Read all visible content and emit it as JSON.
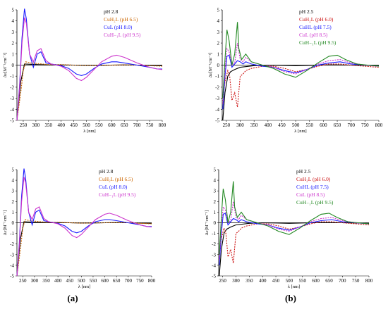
{
  "chart_data": [
    {
      "type": "line",
      "panel": "a-top",
      "xlabel": "λ [nm]",
      "ylabel": "Δε[M⁻¹cm⁻¹]",
      "xlim": [
        225,
        800
      ],
      "ylim": [
        -5,
        5
      ],
      "xticks": [
        250,
        300,
        350,
        400,
        450,
        500,
        550,
        600,
        650,
        700,
        750,
        800
      ],
      "yticks": [
        -5,
        -4,
        -3,
        -2,
        -1,
        0,
        1,
        2,
        3,
        4,
        5
      ],
      "legend_position": "top-right",
      "series": [
        {
          "name": "pH 2.8",
          "color": "#000000",
          "dash": "",
          "x": [
            225,
            240,
            255,
            270,
            300,
            350,
            400,
            450,
            500,
            550,
            600,
            650,
            700,
            750,
            800
          ],
          "y": [
            -5,
            -1.5,
            0.1,
            0.08,
            0.05,
            0.02,
            0.01,
            0.0,
            -0.03,
            -0.02,
            0.0,
            0.02,
            0.0,
            -0.03,
            -0.05
          ]
        },
        {
          "name": "CuH2L (pH 6.5)",
          "color": "#cc6600",
          "dash": "2,1.5",
          "x": [
            225,
            240,
            250,
            260,
            280,
            300,
            350,
            400,
            450,
            500,
            550,
            600,
            650,
            700,
            750,
            800
          ],
          "y": [
            -5,
            -2.5,
            -0.5,
            0.3,
            0.2,
            0.15,
            0.05,
            0.05,
            0.0,
            -0.03,
            -0.02,
            0.0,
            0.02,
            0.0,
            -0.05,
            -0.1
          ]
        },
        {
          "name": "CuL (pH 8.0)",
          "color": "#1a1aff",
          "dash": "",
          "x": [
            225,
            235,
            245,
            255,
            262,
            275,
            290,
            305,
            320,
            340,
            360,
            400,
            430,
            460,
            480,
            500,
            530,
            560,
            600,
            620,
            650,
            700,
            750,
            780,
            800
          ],
          "y": [
            -5,
            -2,
            2.5,
            5.1,
            4.2,
            1.0,
            -0.2,
            1.0,
            1.2,
            0.2,
            0.1,
            -0.05,
            -0.3,
            -0.8,
            -0.95,
            -0.8,
            -0.3,
            0.1,
            0.3,
            0.3,
            0.2,
            0.0,
            -0.2,
            -0.35,
            -0.35
          ]
        },
        {
          "name": "CuH-1L (pH 9.5)",
          "color": "#cc33cc",
          "dash": "",
          "x": [
            225,
            235,
            245,
            255,
            262,
            275,
            290,
            305,
            320,
            340,
            360,
            400,
            430,
            460,
            480,
            500,
            530,
            560,
            600,
            620,
            650,
            700,
            750,
            780,
            800
          ],
          "y": [
            -5,
            -2.2,
            2.0,
            4.3,
            3.8,
            1.0,
            0.3,
            1.3,
            1.5,
            0.4,
            0.1,
            -0.1,
            -0.5,
            -1.2,
            -1.4,
            -1.1,
            -0.4,
            0.3,
            0.8,
            0.9,
            0.7,
            0.2,
            -0.2,
            -0.35,
            -0.4
          ]
        }
      ]
    },
    {
      "type": "line",
      "panel": "b-top",
      "xlabel": "λ [nm]",
      "ylabel": "Δε[M⁻¹cm⁻¹]",
      "xlim": [
        235,
        800
      ],
      "ylim": [
        -5,
        5
      ],
      "xticks": [
        250,
        300,
        350,
        400,
        450,
        500,
        550,
        600,
        650,
        700,
        750,
        800
      ],
      "yticks": [
        -5,
        -4,
        -3,
        -2,
        -1,
        0,
        1,
        2,
        3,
        4,
        5
      ],
      "legend_position": "top-right",
      "series": [
        {
          "name": "pH 2.5",
          "color": "#000000",
          "dash": "",
          "x": [
            237,
            245,
            255,
            265,
            280,
            300,
            350,
            400,
            450,
            500,
            550,
            600,
            650,
            700,
            750,
            800
          ],
          "y": [
            -5,
            -2.5,
            -1.0,
            -0.6,
            -0.4,
            -0.2,
            -0.05,
            0.0,
            -0.02,
            -0.05,
            -0.02,
            0.02,
            0.02,
            0.0,
            -0.02,
            -0.05
          ]
        },
        {
          "name": "CuH2L (pH 6.0)",
          "color": "#cc1111",
          "dash": "2,1.5",
          "x": [
            237,
            245,
            255,
            262,
            270,
            280,
            290,
            300,
            310,
            320,
            340,
            380,
            420,
            460,
            500,
            540,
            580,
            620,
            660,
            700,
            750,
            800
          ],
          "y": [
            -3,
            -1.5,
            -0.5,
            -1.0,
            -3.2,
            -2.5,
            -3.8,
            -1.0,
            -0.8,
            -0.5,
            -0.3,
            -0.1,
            -0.1,
            -0.3,
            -0.6,
            -0.4,
            -0.1,
            0.1,
            0.1,
            0.0,
            -0.1,
            -0.2
          ]
        },
        {
          "name": "CuHL (pH 7.5)",
          "color": "#1a1aff",
          "dash": "",
          "x": [
            237,
            245,
            252,
            260,
            270,
            280,
            290,
            300,
            310,
            320,
            340,
            380,
            420,
            460,
            500,
            540,
            580,
            620,
            660,
            700,
            750,
            800
          ],
          "y": [
            -4,
            -1.0,
            0.8,
            0.9,
            -0.2,
            0.1,
            0.4,
            0.3,
            0.1,
            0.3,
            0.1,
            -0.1,
            -0.2,
            -0.5,
            -0.7,
            -0.4,
            0.0,
            0.2,
            0.3,
            0.1,
            0.0,
            -0.1
          ]
        },
        {
          "name": "CuL (pH 8.5)",
          "color": "#cc33cc",
          "dash": "2,1.5",
          "x": [
            237,
            245,
            252,
            260,
            270,
            280,
            290,
            300,
            310,
            320,
            340,
            380,
            420,
            460,
            500,
            540,
            580,
            620,
            660,
            700,
            750,
            800
          ],
          "y": [
            -3.5,
            -0.5,
            1.5,
            1.2,
            0.0,
            0.2,
            2.0,
            0.5,
            0.3,
            0.7,
            0.3,
            0.0,
            -0.2,
            -0.6,
            -0.8,
            -0.4,
            0.1,
            0.4,
            0.5,
            0.2,
            0.0,
            -0.1
          ]
        },
        {
          "name": "CuH-1L (pH 9.5)",
          "color": "#228822",
          "dash": "",
          "x": [
            237,
            245,
            252,
            260,
            270,
            280,
            290,
            295,
            305,
            320,
            340,
            380,
            420,
            460,
            500,
            540,
            580,
            620,
            650,
            680,
            720,
            760,
            800
          ],
          "y": [
            -3,
            0.5,
            3.2,
            2.2,
            0.0,
            1.0,
            3.9,
            1.5,
            0.5,
            1.0,
            0.3,
            0.0,
            -0.3,
            -0.8,
            -1.1,
            -0.5,
            0.2,
            0.8,
            0.9,
            0.5,
            0.1,
            0.0,
            -0.1
          ]
        }
      ]
    },
    {
      "type": "line",
      "panel": "a-bottom",
      "xlabel": "λ [nm]",
      "ylabel": "Δε[M⁻¹cm⁻¹]",
      "xlim": [
        225,
        800
      ],
      "ylim": [
        -5,
        5
      ],
      "xticks": [
        250,
        300,
        350,
        400,
        450,
        500,
        550,
        600,
        650,
        700,
        750,
        800
      ],
      "yticks": [
        -5,
        -4,
        -3,
        -2,
        -1,
        0,
        1,
        2,
        3,
        4,
        5
      ],
      "legend_position": "top-right",
      "series": [
        {
          "name": "pH 2.8",
          "color": "#000000",
          "dash": "",
          "x": [
            225,
            240,
            255,
            270,
            300,
            350,
            400,
            450,
            500,
            550,
            600,
            650,
            700,
            750,
            800
          ],
          "y": [
            -5,
            -1.5,
            0.1,
            0.08,
            0.05,
            0.02,
            0.01,
            0.0,
            -0.03,
            -0.02,
            0.0,
            0.02,
            0.0,
            -0.03,
            -0.05
          ]
        },
        {
          "name": "CuH2L (pH 6.5)",
          "color": "#cc6600",
          "dash": "2,1.5",
          "x": [
            225,
            240,
            250,
            260,
            280,
            300,
            350,
            400,
            450,
            500,
            550,
            600,
            650,
            700,
            750,
            800
          ],
          "y": [
            -5,
            -2.5,
            -0.5,
            0.3,
            0.2,
            0.15,
            0.05,
            0.05,
            0.0,
            -0.03,
            -0.02,
            0.0,
            0.02,
            0.0,
            -0.05,
            -0.1
          ]
        },
        {
          "name": "CuL (pH 8.0)",
          "color": "#1a1aff",
          "dash": "",
          "x": [
            225,
            235,
            245,
            255,
            262,
            275,
            290,
            305,
            320,
            340,
            360,
            400,
            430,
            460,
            480,
            500,
            530,
            560,
            600,
            620,
            650,
            700,
            750,
            780,
            800
          ],
          "y": [
            -5,
            -2,
            2.5,
            5.1,
            4.2,
            1.0,
            -0.2,
            1.0,
            1.2,
            0.2,
            0.1,
            -0.05,
            -0.3,
            -0.8,
            -0.95,
            -0.8,
            -0.3,
            0.1,
            0.3,
            0.3,
            0.2,
            0.0,
            -0.2,
            -0.35,
            -0.35
          ]
        },
        {
          "name": "CuH-1L (pH 9.5)",
          "color": "#cc33cc",
          "dash": "",
          "x": [
            225,
            235,
            245,
            255,
            262,
            275,
            290,
            305,
            320,
            340,
            360,
            400,
            430,
            460,
            480,
            500,
            530,
            560,
            600,
            620,
            650,
            700,
            750,
            780,
            800
          ],
          "y": [
            -5,
            -2.2,
            2.0,
            4.3,
            3.8,
            1.0,
            0.3,
            1.3,
            1.5,
            0.4,
            0.1,
            -0.1,
            -0.5,
            -1.2,
            -1.4,
            -1.1,
            -0.4,
            0.3,
            0.8,
            0.9,
            0.7,
            0.2,
            -0.2,
            -0.35,
            -0.4
          ]
        }
      ]
    },
    {
      "type": "line",
      "panel": "b-bottom",
      "xlabel": "λ [nm]",
      "ylabel": "Δε[M⁻¹cm⁻¹]",
      "xlim": [
        235,
        800
      ],
      "ylim": [
        -5,
        5
      ],
      "xticks": [
        250,
        300,
        350,
        400,
        450,
        500,
        550,
        600,
        650,
        700,
        750,
        800
      ],
      "yticks": [
        -5,
        -4,
        -3,
        -2,
        -1,
        0,
        1,
        2,
        3,
        4,
        5
      ],
      "legend_position": "top-right",
      "series": [
        {
          "name": "pH 2.5",
          "color": "#000000",
          "dash": "",
          "x": [
            237,
            245,
            255,
            265,
            280,
            300,
            350,
            400,
            450,
            500,
            550,
            600,
            650,
            700,
            750,
            800
          ],
          "y": [
            -5,
            -2.5,
            -1.0,
            -0.6,
            -0.4,
            -0.2,
            -0.05,
            0.0,
            -0.02,
            -0.05,
            -0.02,
            0.02,
            0.02,
            0.0,
            -0.02,
            -0.05
          ]
        },
        {
          "name": "CuH2L (pH 6.0)",
          "color": "#cc1111",
          "dash": "2,1.5",
          "x": [
            237,
            245,
            255,
            262,
            270,
            280,
            290,
            300,
            310,
            320,
            340,
            380,
            420,
            460,
            500,
            540,
            580,
            620,
            660,
            700,
            750,
            800
          ],
          "y": [
            -3,
            -1.5,
            -0.5,
            -1.0,
            -3.2,
            -2.5,
            -3.8,
            -1.0,
            -0.8,
            -0.5,
            -0.3,
            -0.1,
            -0.1,
            -0.3,
            -0.6,
            -0.4,
            -0.1,
            0.1,
            0.1,
            0.0,
            -0.1,
            -0.2
          ]
        },
        {
          "name": "CuHL (pH 7.5)",
          "color": "#1a1aff",
          "dash": "",
          "x": [
            237,
            245,
            252,
            260,
            270,
            280,
            290,
            300,
            310,
            320,
            340,
            380,
            420,
            460,
            500,
            540,
            580,
            620,
            660,
            700,
            750,
            800
          ],
          "y": [
            -4,
            -1.0,
            0.8,
            0.9,
            -0.2,
            0.1,
            0.4,
            0.3,
            0.1,
            0.3,
            0.1,
            -0.1,
            -0.2,
            -0.5,
            -0.7,
            -0.4,
            0.0,
            0.2,
            0.3,
            0.1,
            0.0,
            -0.1
          ]
        },
        {
          "name": "CuL (pH 8.5)",
          "color": "#cc33cc",
          "dash": "2,1.5",
          "x": [
            237,
            245,
            252,
            260,
            270,
            280,
            290,
            300,
            310,
            320,
            340,
            380,
            420,
            460,
            500,
            540,
            580,
            620,
            660,
            700,
            750,
            800
          ],
          "y": [
            -3.5,
            -0.5,
            1.5,
            1.2,
            0.0,
            0.2,
            2.0,
            0.5,
            0.3,
            0.7,
            0.3,
            0.0,
            -0.2,
            -0.6,
            -0.8,
            -0.4,
            0.1,
            0.4,
            0.5,
            0.2,
            0.0,
            -0.1
          ]
        },
        {
          "name": "CuH-1L (pH 9.5)",
          "color": "#228822",
          "dash": "",
          "x": [
            237,
            245,
            252,
            260,
            270,
            280,
            290,
            295,
            305,
            320,
            340,
            380,
            420,
            460,
            500,
            540,
            580,
            620,
            650,
            680,
            720,
            760,
            800
          ],
          "y": [
            -3,
            0.5,
            3.2,
            2.2,
            0.0,
            1.0,
            3.9,
            1.5,
            0.5,
            1.0,
            0.3,
            0.0,
            -0.3,
            -0.8,
            -1.1,
            -0.5,
            0.2,
            0.8,
            0.9,
            0.5,
            0.1,
            0.0,
            -0.1
          ]
        }
      ]
    }
  ],
  "captions": [
    "(a)",
    "(b)"
  ]
}
